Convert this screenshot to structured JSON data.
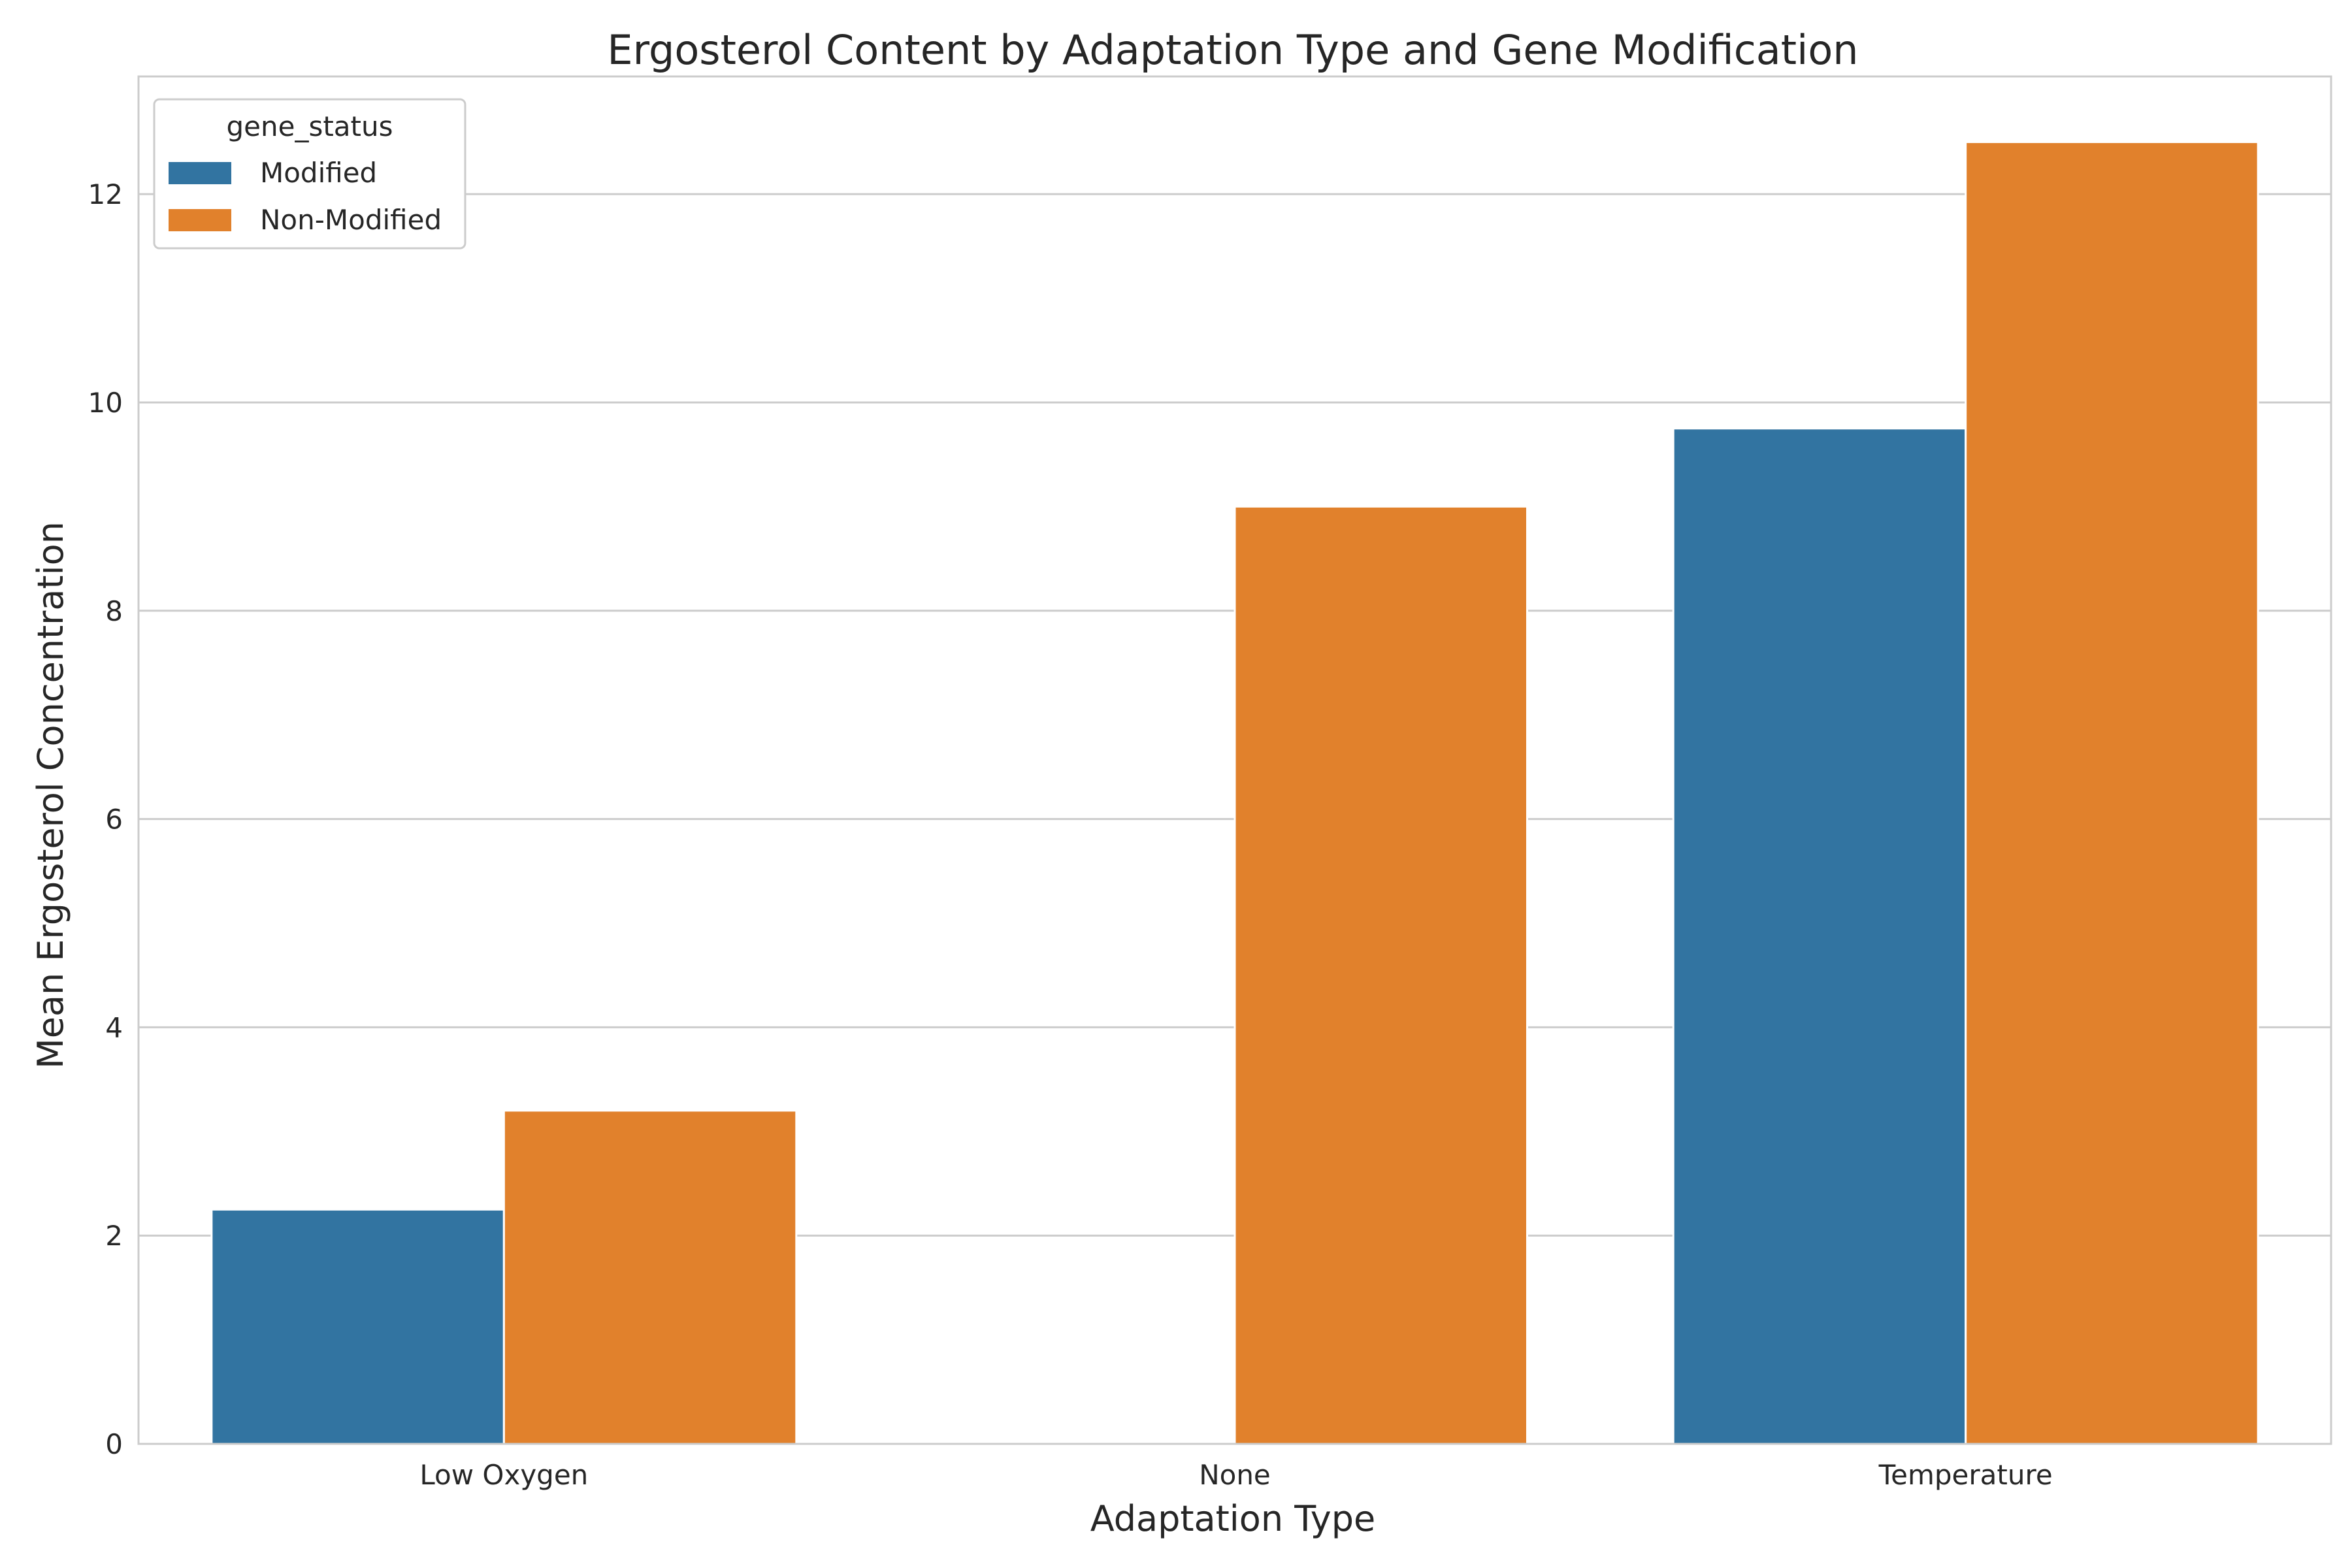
{
  "chart_data": {
    "type": "bar",
    "title": "Ergosterol Content by Adaptation Type and Gene Modification",
    "xlabel": "Adaptation Type",
    "ylabel": "Mean Ergosterol Concentration",
    "categories": [
      "Low Oxygen",
      "None",
      "Temperature"
    ],
    "series": [
      {
        "name": "Modified",
        "color": "#3274a1",
        "values": [
          2.25,
          null,
          9.75
        ]
      },
      {
        "name": "Non-Modified",
        "color": "#e1812c",
        "values": [
          3.2,
          9.0,
          12.5
        ]
      }
    ],
    "ylim": [
      0,
      13.13
    ],
    "yticks": [
      0,
      2,
      4,
      6,
      8,
      10,
      12
    ],
    "grid": true,
    "legend": {
      "title": "gene_status",
      "placement": "top-left"
    }
  }
}
